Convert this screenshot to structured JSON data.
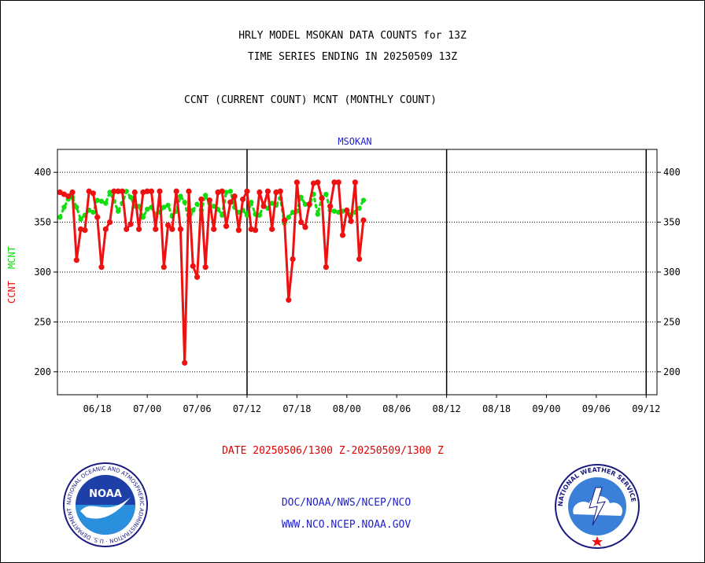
{
  "header": {
    "title_line1": "HRLY MODEL MSOKAN DATA COUNTS for 13Z",
    "title_line2": "TIME SERIES ENDING IN 20250509 13Z",
    "subtitle": "CCNT (CURRENT COUNT) MCNT (MONTHLY COUNT)"
  },
  "footer": {
    "date_range": "DATE 20250506/1300 Z-20250509/1300 Z",
    "link1": "DOC/NOAA/NWS/NCEP/NCO",
    "link2": "WWW.NCO.NCEP.NOAA.GOV"
  },
  "logos": {
    "noaa": {
      "ring_text": "NATIONAL OCEANIC AND ATMOSPHERIC ADMINISTRATION · U.S. DEPARTMENT OF COMMERCE ·",
      "center_text": "NOAA"
    },
    "nws": {
      "ring_text": "NATIONAL WEATHER SERVICE"
    }
  },
  "colors": {
    "ccnt": "#ee1111",
    "mcnt": "#11dd11",
    "series_label": "#2222cc",
    "text": "#000000"
  },
  "chart_data": {
    "type": "line",
    "title": "MSOKAN",
    "ylabel_ccnt": "CCNT",
    "ylabel_mcnt": "MCNT",
    "ylim": [
      177,
      423
    ],
    "yticks": [
      200,
      250,
      300,
      350,
      400
    ],
    "grid": true,
    "x_tick_labels": [
      "06/18",
      "07/00",
      "07/06",
      "07/12",
      "07/18",
      "08/00",
      "08/06",
      "08/12",
      "08/18",
      "09/00",
      "09/06",
      "09/12"
    ],
    "x_tick_index": [
      9,
      21,
      33,
      45,
      57,
      69,
      81,
      93,
      105,
      117,
      129,
      141
    ],
    "day_boundary_index": [
      45,
      93,
      141
    ],
    "x_index_range": [
      -0.6,
      143.6
    ],
    "series": [
      {
        "name": "CCNT",
        "values": [
          380,
          378,
          376,
          380,
          312,
          343,
          342,
          381,
          379,
          355,
          305,
          343,
          350,
          381,
          381,
          381,
          343,
          348,
          380,
          343,
          380,
          381,
          381,
          343,
          381,
          305,
          347,
          343,
          381,
          343,
          209,
          381,
          306,
          295,
          373,
          305,
          372,
          343,
          380,
          381,
          346,
          370,
          376,
          342,
          373,
          381,
          343,
          342,
          380,
          366,
          381,
          343,
          380,
          381,
          352,
          272,
          313,
          390,
          350,
          345,
          368,
          389,
          390,
          374,
          305,
          366,
          390,
          390,
          337,
          362,
          351,
          390,
          313,
          352
        ]
      },
      {
        "name": "MCNT",
        "values": [
          355,
          365,
          373,
          375,
          365,
          353,
          357,
          362,
          360,
          372,
          371,
          369,
          380,
          371,
          361,
          369,
          381,
          375,
          366,
          366,
          355,
          363,
          365,
          358,
          360,
          365,
          367,
          356,
          361,
          376,
          370,
          351,
          362,
          368,
          362,
          377,
          369,
          366,
          363,
          357,
          380,
          381,
          365,
          360,
          362,
          357,
          370,
          358,
          357,
          367,
          364,
          369,
          367,
          374,
          349,
          355,
          360,
          361,
          375,
          368,
          367,
          378,
          358,
          375,
          378,
          362,
          361,
          360,
          361,
          362,
          357,
          360,
          364,
          372
        ]
      }
    ]
  }
}
